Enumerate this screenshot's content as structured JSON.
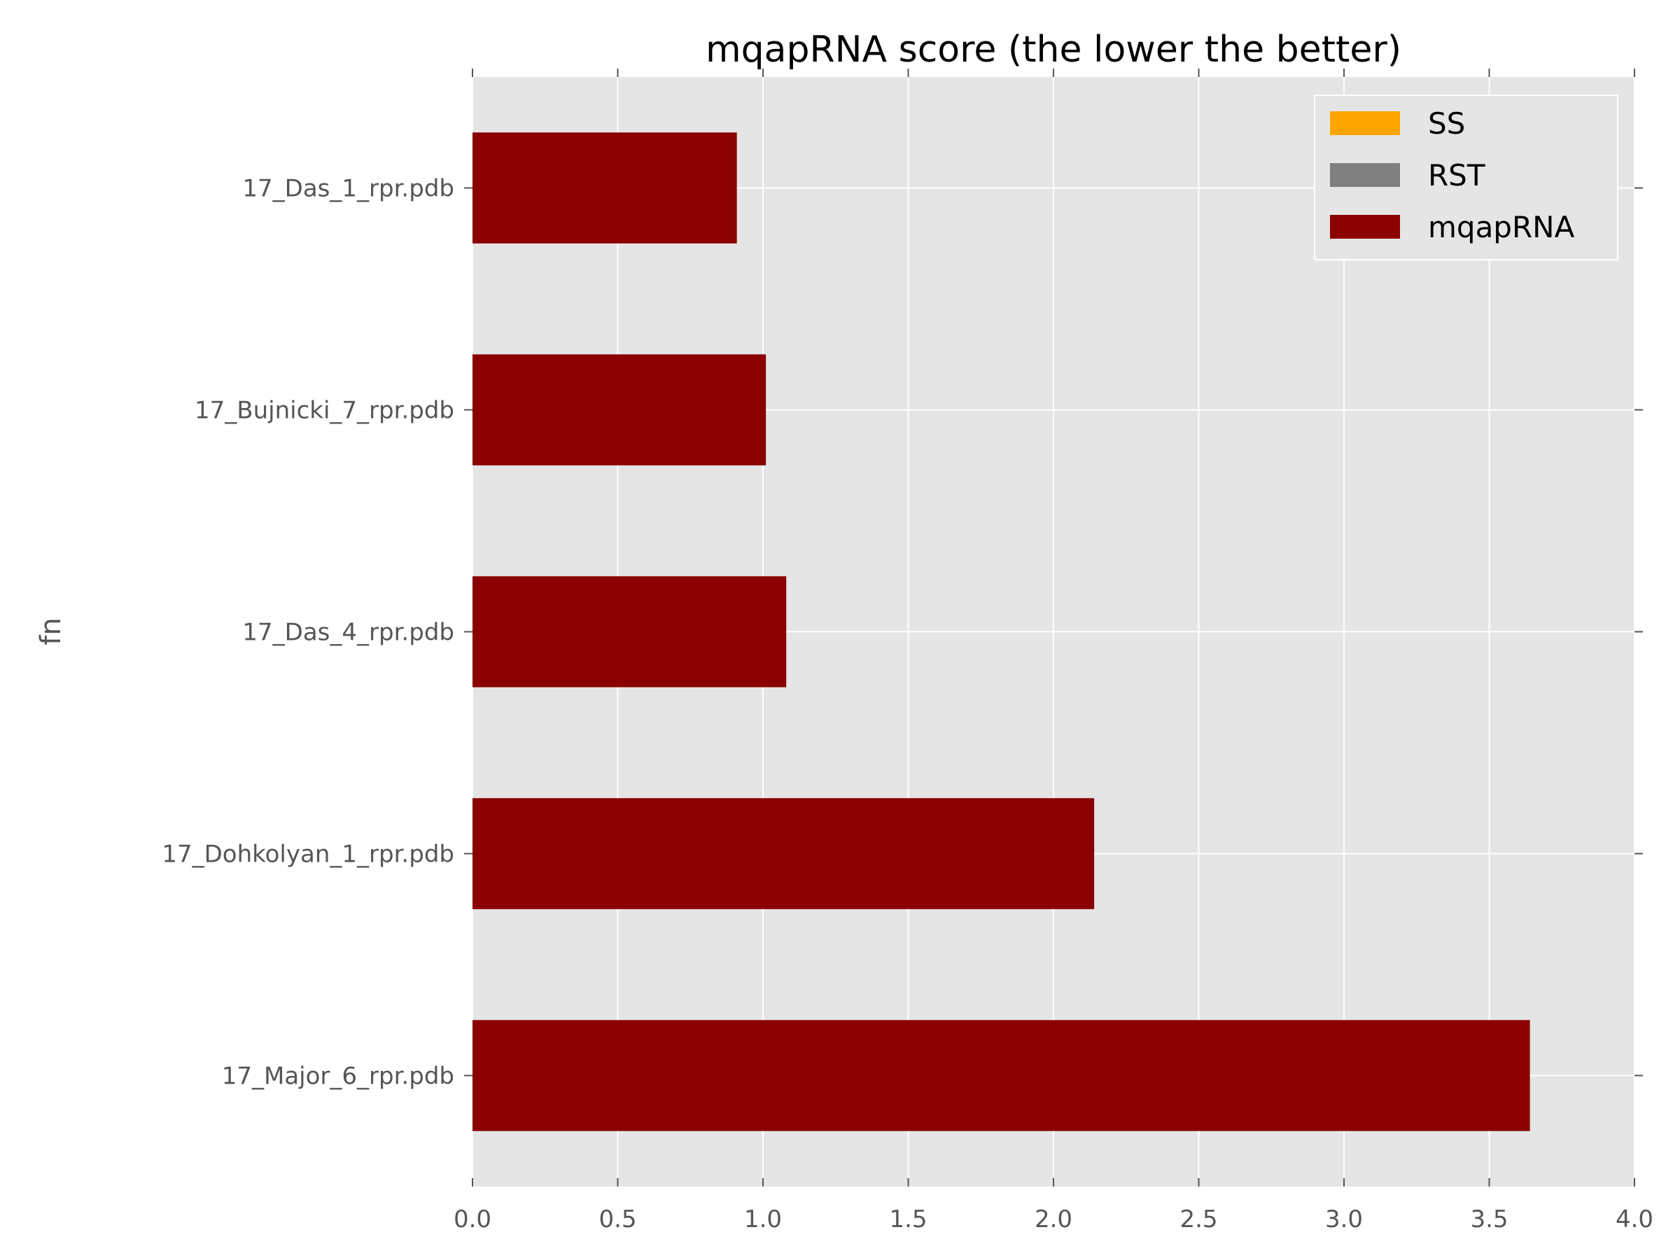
{
  "chart_data": {
    "type": "bar",
    "orientation": "horizontal",
    "title": "mqapRNA score (the lower the better)",
    "xlabel": "",
    "ylabel": "fn",
    "xlim": [
      0,
      4.0
    ],
    "xticks": [
      "0.0",
      "0.5",
      "1.0",
      "1.5",
      "2.0",
      "2.5",
      "3.0",
      "3.5",
      "4.0"
    ],
    "xtick_values": [
      0,
      0.5,
      1.0,
      1.5,
      2.0,
      2.5,
      3.0,
      3.5,
      4.0
    ],
    "categories": [
      "17_Das_1_rpr.pdb",
      "17_Bujnicki_7_rpr.pdb",
      "17_Das_4_rpr.pdb",
      "17_Dohkolyan_1_rpr.pdb",
      "17_Major_6_rpr.pdb"
    ],
    "series": [
      {
        "name": "SS",
        "color": "#ffa500",
        "values": [
          0,
          0,
          0,
          0,
          0
        ]
      },
      {
        "name": "RST",
        "color": "#808080",
        "values": [
          0,
          0,
          0,
          0,
          0
        ]
      },
      {
        "name": "mqapRNA",
        "color": "#8b0000",
        "values": [
          0.91,
          1.01,
          1.08,
          2.14,
          3.64
        ]
      }
    ],
    "grid": true,
    "legend_position": "top-right",
    "plot_background": "#e5e5e5"
  }
}
